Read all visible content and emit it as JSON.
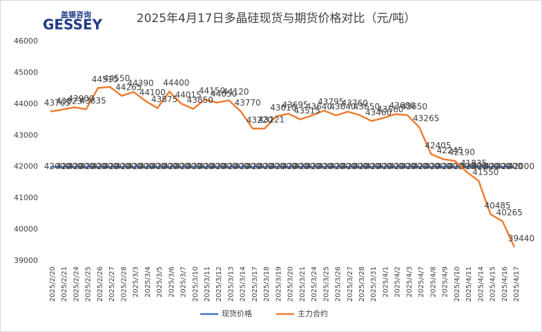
{
  "logo": {
    "name": "盖锡咨询",
    "brand": "GESSEY"
  },
  "chart_data": {
    "type": "line",
    "title": "2025年4月17日多晶硅现货与期货价格对比（元/吨）",
    "categories": [
      "2025/2/20",
      "2025/2/21",
      "2025/2/24",
      "2025/2/25",
      "2025/2/26",
      "2025/2/27",
      "2025/2/28",
      "2025/3/3",
      "2025/3/4",
      "2025/3/5",
      "2025/3/6",
      "2025/3/7",
      "2025/3/10",
      "2025/3/11",
      "2025/3/12",
      "2025/3/13",
      "2025/3/14",
      "2025/3/17",
      "2025/3/18",
      "2025/3/19",
      "2025/3/20",
      "2025/3/21",
      "2025/3/24",
      "2025/3/25",
      "2025/3/26",
      "2025/3/27",
      "2025/3/28",
      "2025/3/31",
      "2025/4/1",
      "2025/4/2",
      "2025/4/3",
      "2025/4/7",
      "2025/4/8",
      "2025/4/9",
      "2025/4/10",
      "2025/4/11",
      "2025/4/14",
      "2025/4/15",
      "2025/4/16",
      "2025/4/17"
    ],
    "series": [
      {
        "name": "现货价格",
        "color": "#4472c4",
        "values": [
          42000,
          42000,
          42000,
          42000,
          42000,
          42000,
          42000,
          42000,
          42000,
          42000,
          42000,
          42000,
          42000,
          42000,
          42000,
          42000,
          42000,
          42000,
          42000,
          42000,
          42000,
          42000,
          42000,
          42000,
          42000,
          42000,
          42000,
          42000,
          42000,
          42000,
          42000,
          42000,
          42000,
          42000,
          42000,
          42000,
          42000,
          42000,
          42000,
          42000
        ]
      },
      {
        "name": "主力合约",
        "color": "#ed7d31",
        "values": [
          43765,
          43823,
          43900,
          43835,
          44515,
          44550,
          44265,
          44390,
          44100,
          43875,
          44400,
          44015,
          43850,
          44150,
          44050,
          44120,
          43770,
          43220,
          43221,
          43610,
          43695,
          43515,
          43640,
          43795,
          43640,
          43760,
          43650,
          43460,
          43560,
          43680,
          43650,
          43265,
          42405,
          42245,
          42190,
          41835,
          41550,
          40485,
          40265,
          39440
        ]
      }
    ],
    "ylim": [
      39000,
      46000
    ],
    "yticks": [
      39000,
      40000,
      41000,
      42000,
      43000,
      44000,
      45000,
      46000
    ],
    "grid": false,
    "legend": "bottom"
  }
}
